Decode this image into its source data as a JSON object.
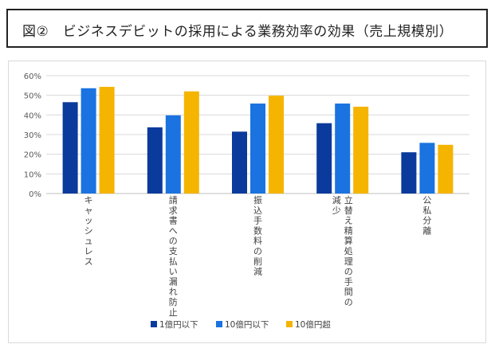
{
  "title": "図②　ビジネスデビットの採用による業務効率の効果（売上規模別）",
  "chart_data": {
    "type": "bar",
    "categories": [
      [
        "キャッシュレス"
      ],
      [
        "請求書への支払い漏れ防止"
      ],
      [
        "振込手数料の削減"
      ],
      [
        "立替え精算処理の手間の",
        "減少"
      ],
      [
        "公私分離"
      ]
    ],
    "series": [
      {
        "name": "1億円以下",
        "color": "#0a3a9c",
        "values": [
          46.5,
          33.7,
          31.5,
          35.8,
          21.0
        ]
      },
      {
        "name": "10億円以下",
        "color": "#1a73e0",
        "values": [
          53.6,
          39.8,
          45.8,
          45.8,
          25.8
        ]
      },
      {
        "name": "10億円超",
        "color": "#f5b400",
        "values": [
          54.3,
          52.0,
          49.8,
          44.2,
          24.8
        ]
      }
    ],
    "yticks": [
      "0%",
      "10%",
      "20%",
      "30%",
      "40%",
      "50%",
      "60%"
    ],
    "ylim": [
      0,
      60
    ],
    "legend_position": "bottom",
    "grid": true
  }
}
